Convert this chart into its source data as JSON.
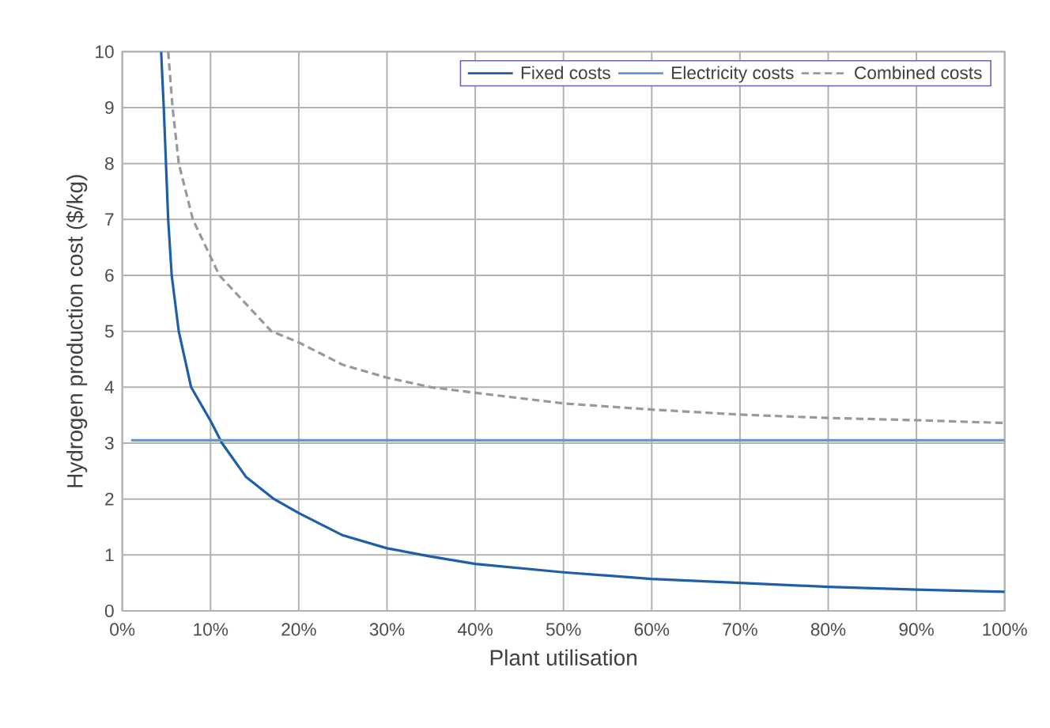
{
  "chart_data": {
    "type": "line",
    "xlabel": "Plant utilisation",
    "ylabel": "Hydrogen production cost ($/kg)",
    "xlim": [
      0,
      100
    ],
    "ylim": [
      0,
      10
    ],
    "xticks": [
      {
        "value": 0,
        "label": "0%"
      },
      {
        "value": 10,
        "label": "10%"
      },
      {
        "value": 20,
        "label": "20%"
      },
      {
        "value": 30,
        "label": "30%"
      },
      {
        "value": 40,
        "label": "40%"
      },
      {
        "value": 50,
        "label": "50%"
      },
      {
        "value": 60,
        "label": "60%"
      },
      {
        "value": 70,
        "label": "70%"
      },
      {
        "value": 80,
        "label": "80%"
      },
      {
        "value": 90,
        "label": "90%"
      },
      {
        "value": 100,
        "label": "100%"
      }
    ],
    "yticks": [
      0,
      1,
      2,
      3,
      4,
      5,
      6,
      7,
      8,
      9,
      10
    ],
    "grid": true,
    "legend": "top right",
    "marker": "none",
    "series": [
      {
        "name": "Fixed costs",
        "color": "#1f5fa8",
        "line_style": "solid",
        "x": [
          4.4,
          4.7,
          5.2,
          5.6,
          6.4,
          7.8,
          10,
          11.3,
          14,
          17.2,
          20,
          25,
          30,
          35,
          40,
          50,
          60,
          70,
          80,
          90,
          100
        ],
        "values": [
          10,
          9,
          7,
          6,
          5,
          4,
          3.4,
          3,
          2.4,
          2,
          1.75,
          1.35,
          1.12,
          0.97,
          0.84,
          0.69,
          0.57,
          0.5,
          0.43,
          0.38,
          0.34
        ]
      },
      {
        "name": "Electricity costs",
        "color": "#5b9bd5",
        "line_style": "solid",
        "x": [
          1,
          100
        ],
        "values": [
          3.05,
          3.05
        ]
      },
      {
        "name": "Combined costs",
        "color": "#999999",
        "line_style": "dashed",
        "x": [
          5.2,
          5.7,
          6.4,
          8,
          11,
          16.9,
          20,
          25,
          30,
          35,
          40,
          50,
          60,
          70,
          80,
          90,
          100
        ],
        "values": [
          10,
          9,
          8,
          7,
          6,
          5,
          4.8,
          4.4,
          4.17,
          4.0,
          3.9,
          3.71,
          3.6,
          3.51,
          3.45,
          3.41,
          3.36
        ]
      }
    ]
  }
}
